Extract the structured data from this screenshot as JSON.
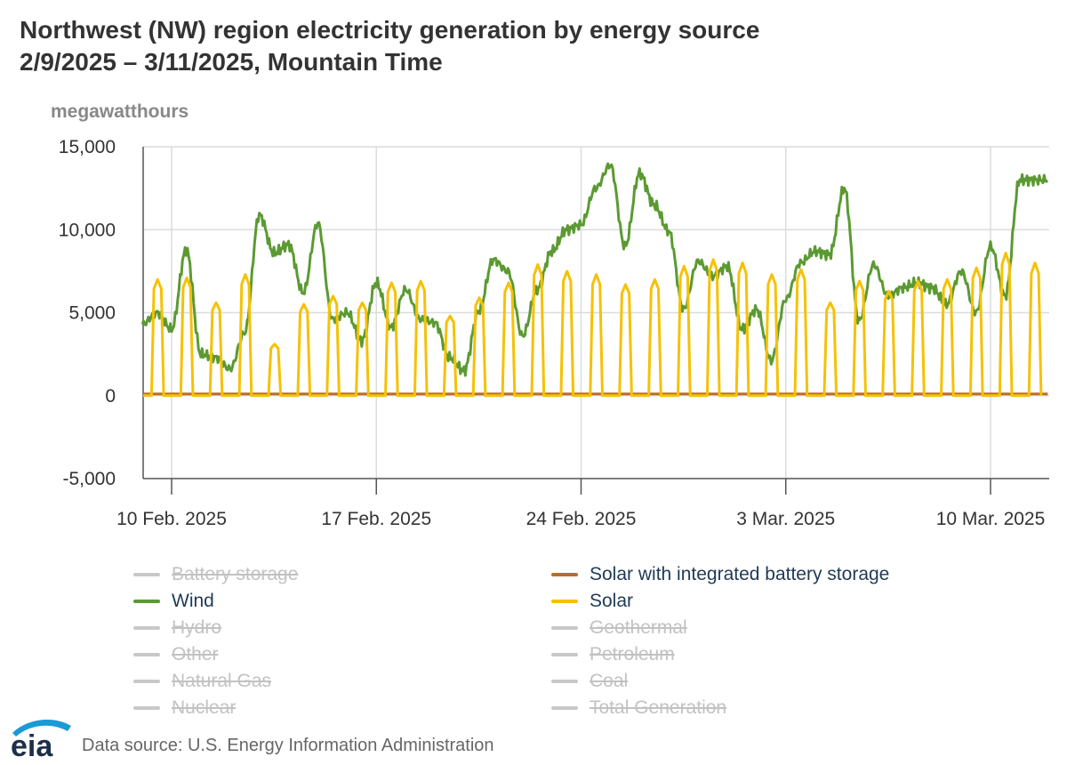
{
  "title_line1": "Northwest (NW) region electricity generation by energy source",
  "title_line2": "2/9/2025 – 3/11/2025, Mountain Time",
  "footer": {
    "logo_text": "eia",
    "source": "Data source: U.S. Energy Information Administration"
  },
  "colors": {
    "wind": "#5b9a32",
    "solar": "#f6c105",
    "solar_battery": "#b96d27",
    "disabled": "#c8c8c8",
    "grid": "#dcdcdc",
    "axis": "#555555"
  },
  "legend": [
    {
      "name": "Battery storage",
      "enabled": false,
      "color": "#c8c8c8"
    },
    {
      "name": "Solar with integrated battery storage",
      "enabled": true,
      "color": "#b96d27"
    },
    {
      "name": "Wind",
      "enabled": true,
      "color": "#5b9a32"
    },
    {
      "name": "Solar",
      "enabled": true,
      "color": "#f6c105"
    },
    {
      "name": "Hydro",
      "enabled": false,
      "color": "#c8c8c8"
    },
    {
      "name": "Geothermal",
      "enabled": false,
      "color": "#c8c8c8"
    },
    {
      "name": "Other",
      "enabled": false,
      "color": "#c8c8c8"
    },
    {
      "name": "Petroleum",
      "enabled": false,
      "color": "#c8c8c8"
    },
    {
      "name": "Natural Gas",
      "enabled": false,
      "color": "#c8c8c8"
    },
    {
      "name": "Coal",
      "enabled": false,
      "color": "#c8c8c8"
    },
    {
      "name": "Nuclear",
      "enabled": false,
      "color": "#c8c8c8"
    },
    {
      "name": "Total Generation",
      "enabled": false,
      "color": "#c8c8c8"
    }
  ],
  "chart_data": {
    "type": "line",
    "title": "Northwest (NW) region electricity generation by energy source",
    "subtitle": "2/9/2025 – 3/11/2025, Mountain Time",
    "ylabel": "megawatthours",
    "ylim": [
      -5000,
      15000
    ],
    "yticks": [
      15000,
      10000,
      5000,
      0,
      -5000
    ],
    "ytick_labels": [
      "15,000",
      "10,000",
      "5,000",
      "0",
      "-5,000"
    ],
    "xlim": [
      "2025-02-09",
      "2025-03-11T23:00"
    ],
    "xticks": [
      "2025-02-10",
      "2025-02-17",
      "2025-02-24",
      "2025-03-03",
      "2025-03-10"
    ],
    "xtick_labels": [
      "10 Feb. 2025",
      "17 Feb. 2025",
      "24 Feb. 2025",
      "3 Mar. 2025",
      "10 Mar. 2025"
    ],
    "grid": true,
    "legend_position": "bottom",
    "series": [
      {
        "name": "Wind",
        "color": "#5b9a32",
        "x": [
          "2025-02-09",
          "2025-02-09T12:00",
          "2025-02-10",
          "2025-02-10T12:00",
          "2025-02-11",
          "2025-02-11T12:00",
          "2025-02-12",
          "2025-02-12T12:00",
          "2025-02-13",
          "2025-02-13T12:00",
          "2025-02-14",
          "2025-02-14T12:00",
          "2025-02-15",
          "2025-02-15T12:00",
          "2025-02-16",
          "2025-02-16T12:00",
          "2025-02-17",
          "2025-02-17T12:00",
          "2025-02-18",
          "2025-02-18T12:00",
          "2025-02-19",
          "2025-02-19T12:00",
          "2025-02-20",
          "2025-02-20T12:00",
          "2025-02-21",
          "2025-02-21T12:00",
          "2025-02-22",
          "2025-02-22T12:00",
          "2025-02-23",
          "2025-02-23T12:00",
          "2025-02-24",
          "2025-02-24T12:00",
          "2025-02-25",
          "2025-02-25T12:00",
          "2025-02-26",
          "2025-02-26T12:00",
          "2025-02-27",
          "2025-02-27T12:00",
          "2025-02-28",
          "2025-02-28T12:00",
          "2025-03-01",
          "2025-03-01T12:00",
          "2025-03-02",
          "2025-03-02T12:00",
          "2025-03-03",
          "2025-03-03T12:00",
          "2025-03-04",
          "2025-03-04T12:00",
          "2025-03-05",
          "2025-03-05T12:00",
          "2025-03-06",
          "2025-03-06T12:00",
          "2025-03-07",
          "2025-03-07T12:00",
          "2025-03-08",
          "2025-03-08T12:00",
          "2025-03-09",
          "2025-03-09T12:00",
          "2025-03-10",
          "2025-03-10T12:00",
          "2025-03-11"
        ],
        "values": [
          4300,
          5000,
          4000,
          8800,
          2500,
          2300,
          1600,
          3800,
          10900,
          8600,
          9100,
          6200,
          10400,
          4600,
          5000,
          3300,
          6800,
          4100,
          6400,
          4600,
          4400,
          2300,
          1500,
          5100,
          8200,
          7500,
          3600,
          6400,
          8700,
          10000,
          10300,
          12500,
          13900,
          9000,
          13400,
          11500,
          9900,
          5200,
          8100,
          7200,
          7800,
          4000,
          5200,
          2100,
          5800,
          8000,
          8700,
          8500,
          12500,
          4500,
          7900,
          6000,
          6500,
          6800,
          6500,
          5500,
          7500,
          5000,
          9000,
          6000,
          13000
        ]
      },
      {
        "name": "Solar",
        "color": "#f6c105",
        "peak_date": [
          "2025-02-09",
          "2025-02-10",
          "2025-02-11",
          "2025-02-12",
          "2025-02-13",
          "2025-02-14",
          "2025-02-15",
          "2025-02-16",
          "2025-02-17",
          "2025-02-18",
          "2025-02-19",
          "2025-02-20",
          "2025-02-21",
          "2025-02-22",
          "2025-02-23",
          "2025-02-24",
          "2025-02-25",
          "2025-02-26",
          "2025-02-27",
          "2025-02-28",
          "2025-03-01",
          "2025-03-02",
          "2025-03-03",
          "2025-03-04",
          "2025-03-05",
          "2025-03-06",
          "2025-03-07",
          "2025-03-08",
          "2025-03-09",
          "2025-03-10",
          "2025-03-11"
        ],
        "peak_values": [
          7000,
          7100,
          5600,
          7300,
          3100,
          5500,
          6000,
          5600,
          6800,
          6900,
          4800,
          5900,
          6800,
          7900,
          7500,
          7300,
          6700,
          7000,
          7800,
          8200,
          8000,
          7300,
          7600,
          5600,
          6900,
          6300,
          6900,
          7000,
          7700,
          8600,
          8000
        ],
        "night_value": 0
      },
      {
        "name": "Solar with integrated battery storage",
        "color": "#b96d27",
        "values_note": "approximately flat",
        "value": 100
      }
    ]
  }
}
